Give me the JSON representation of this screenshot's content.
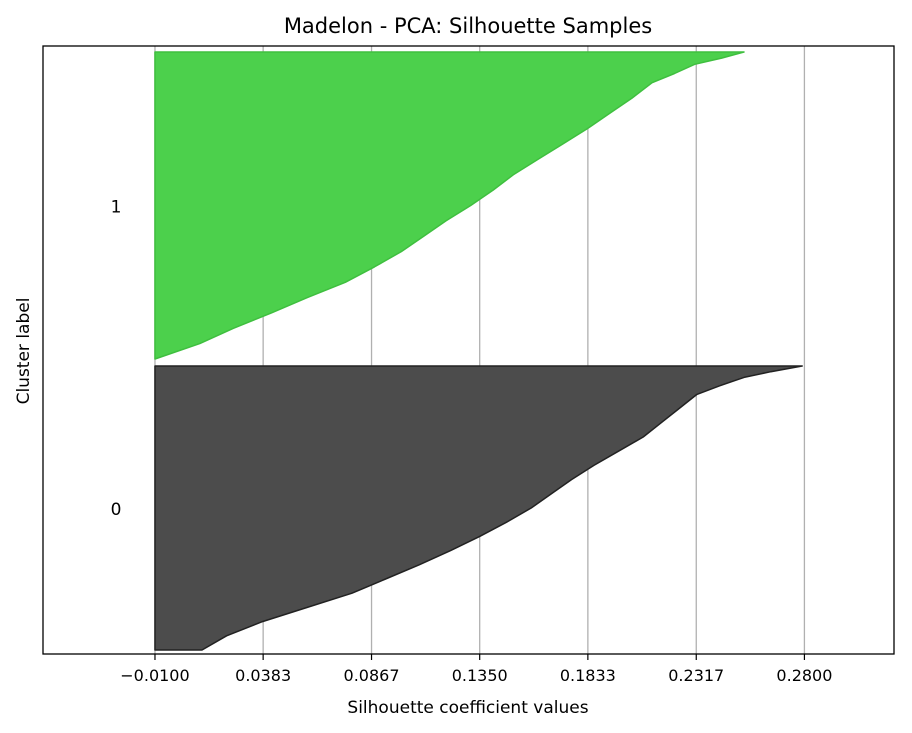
{
  "chart_data": {
    "type": "area",
    "title": "Madelon - PCA: Silhouette Samples",
    "xlabel": "Silhouette coefficient values",
    "ylabel": "Cluster label",
    "xlim": [
      -0.06,
      0.32
    ],
    "x_ticks": [
      "-0.0100",
      "0.0383",
      "0.0867",
      "0.1350",
      "0.1833",
      "0.2317",
      "0.2800"
    ],
    "x_tick_values": [
      -0.01,
      0.0383,
      0.0867,
      0.135,
      0.1833,
      0.2317,
      0.28
    ],
    "grid": "vertical",
    "series": [
      {
        "cluster": "0",
        "color": "#4c4c4c",
        "edge_color": "#222222",
        "sorted_silhouette_profile": {
          "fraction_of_samples": [
            0.0,
            0.05,
            0.1,
            0.15,
            0.2,
            0.25,
            0.3,
            0.35,
            0.4,
            0.45,
            0.5,
            0.55,
            0.6,
            0.65,
            0.7,
            0.75,
            0.8,
            0.85,
            0.9,
            0.93,
            0.96,
            0.98,
            1.0
          ],
          "silhouette": [
            0.011,
            0.022,
            0.038,
            0.058,
            0.078,
            0.093,
            0.108,
            0.122,
            0.135,
            0.147,
            0.158,
            0.167,
            0.176,
            0.186,
            0.197,
            0.208,
            0.216,
            0.224,
            0.232,
            0.242,
            0.253,
            0.265,
            0.279
          ]
        }
      },
      {
        "cluster": "1",
        "color": "#4cd04c",
        "edge_color": "#3fbf3f",
        "sorted_silhouette_profile": {
          "fraction_of_samples": [
            0.0,
            0.05,
            0.1,
            0.15,
            0.2,
            0.25,
            0.3,
            0.35,
            0.4,
            0.45,
            0.5,
            0.55,
            0.6,
            0.65,
            0.7,
            0.75,
            0.8,
            0.85,
            0.9,
            0.93,
            0.96,
            0.98,
            1.0
          ],
          "silhouette": [
            -0.01,
            0.01,
            0.025,
            0.042,
            0.058,
            0.075,
            0.088,
            0.1,
            0.11,
            0.12,
            0.131,
            0.141,
            0.15,
            0.161,
            0.172,
            0.183,
            0.193,
            0.203,
            0.212,
            0.222,
            0.231,
            0.243,
            0.253
          ]
        }
      }
    ]
  }
}
